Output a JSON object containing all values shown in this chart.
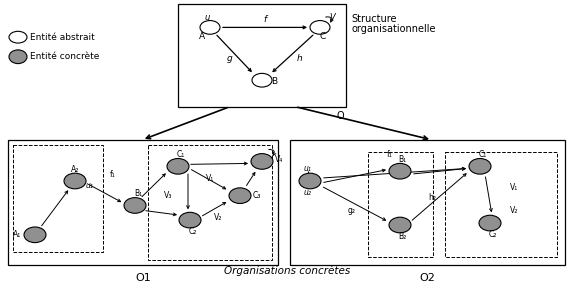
{
  "bg_color": "#ffffff",
  "node_abstract_color": "#ffffff",
  "node_concrete_color": "#909090",
  "legend_abstract_label": "Entité abstrait",
  "legend_concrete_label": "Entité concrète",
  "top_box_label": "O",
  "top_box_title1": "Structure",
  "top_box_title2": "organisationnelle",
  "bottom_label_center": "Organisations concrètes",
  "o1_label": "O1",
  "o2_label": "O2",
  "figsize": [
    5.75,
    2.84
  ],
  "dpi": 100
}
